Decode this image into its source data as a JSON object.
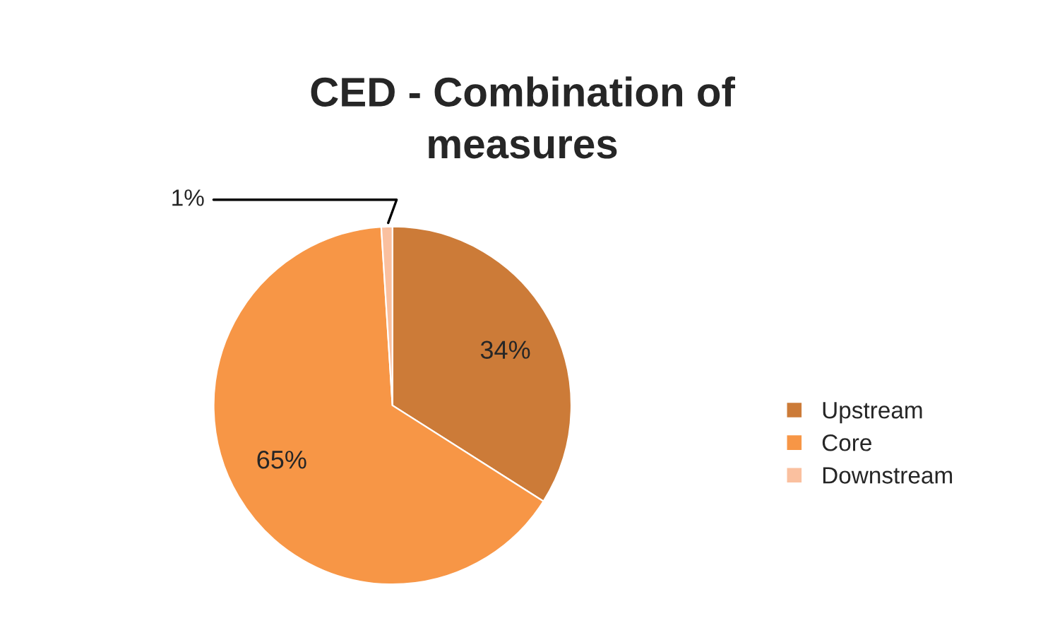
{
  "chart_data": {
    "type": "pie",
    "title": "CED - Combination of measures",
    "categories": [
      "Upstream",
      "Core",
      "Downstream"
    ],
    "values": [
      34,
      65,
      1
    ],
    "colors": [
      "#cc7b38",
      "#f79646",
      "#fac09f"
    ],
    "value_labels": [
      "34%",
      "65%",
      "1%"
    ],
    "legend": "right"
  }
}
